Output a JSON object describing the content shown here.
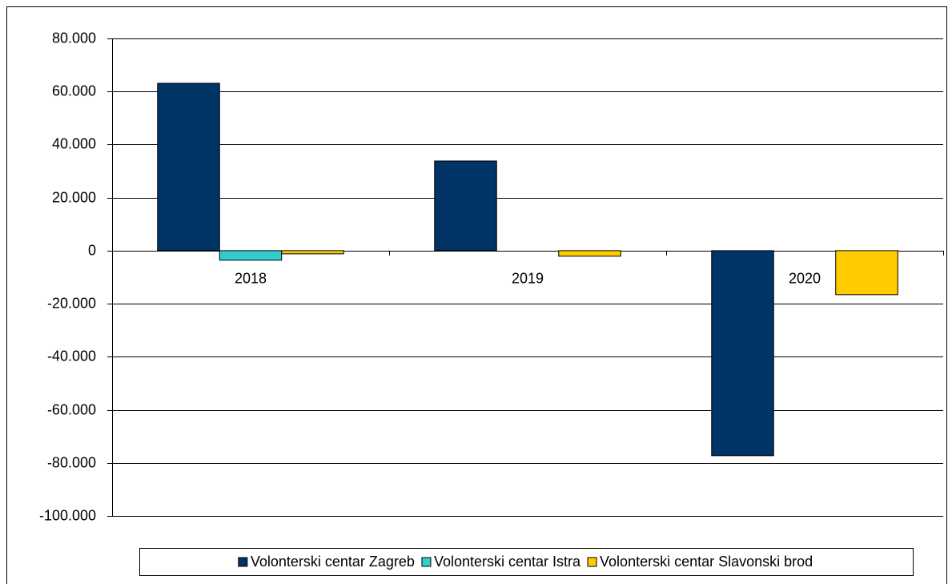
{
  "chart_data": {
    "type": "bar",
    "categories": [
      "2018",
      "2019",
      "2020"
    ],
    "series": [
      {
        "name": "Volonterski centar Zagreb",
        "color": "#003366",
        "values": [
          63100,
          33800,
          -77300
        ]
      },
      {
        "name": "Volonterski centar Istra",
        "color": "#33CCCC",
        "values": [
          -3600,
          0,
          0
        ]
      },
      {
        "name": "Volonterski centar Slavonski brod",
        "color": "#FFCC00",
        "values": [
          -1200,
          -2100,
          -16600
        ]
      }
    ],
    "ylim": [
      -100000,
      80000
    ],
    "yticks": [
      {
        "value": -100000,
        "label": "-100.000"
      },
      {
        "value": -80000,
        "label": "-80.000"
      },
      {
        "value": -60000,
        "label": "-60.000"
      },
      {
        "value": -40000,
        "label": "-40.000"
      },
      {
        "value": -20000,
        "label": "-20.000"
      },
      0,
      {
        "value": 20000,
        "label": "20.000"
      },
      {
        "value": 40000,
        "label": "40.000"
      },
      {
        "value": 60000,
        "label": "60.000"
      },
      {
        "value": 80000,
        "label": "80.000"
      }
    ],
    "grid": true,
    "legend": "bottom"
  }
}
